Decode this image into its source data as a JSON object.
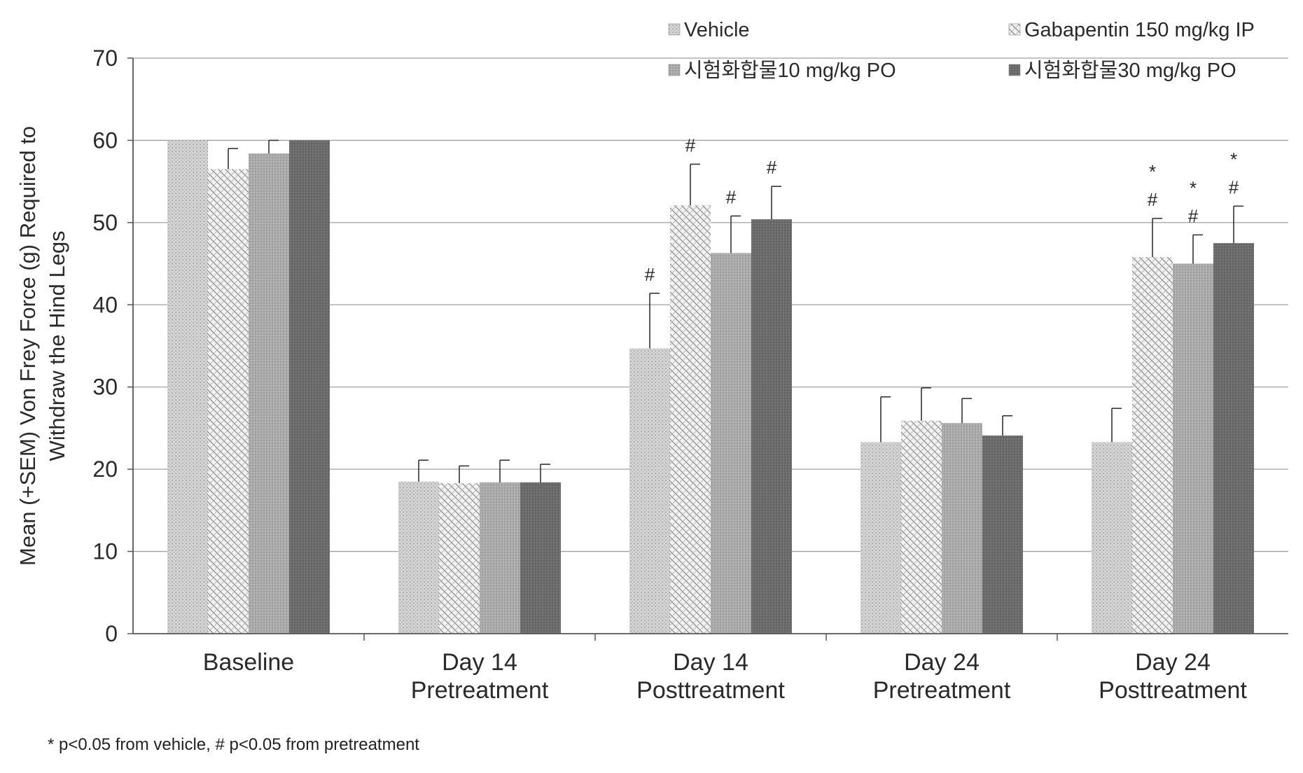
{
  "chart_data": {
    "type": "bar",
    "title": "",
    "xlabel": "",
    "ylabel_lines": [
      "Mean (+SEM) Von Frey  Force (g) Required to",
      "Withdraw the Hind Legs"
    ],
    "ylim": [
      0,
      70
    ],
    "yticks": [
      0,
      10,
      20,
      30,
      40,
      50,
      60,
      70
    ],
    "grid": true,
    "legend_position": "top",
    "categories": [
      [
        "Baseline"
      ],
      [
        "Day 14",
        "Pretreatment"
      ],
      [
        "Day 14",
        "Posttreatment"
      ],
      [
        "Day 24",
        "Pretreatment"
      ],
      [
        "Day 24",
        "Posttreatment"
      ]
    ],
    "series": [
      {
        "name": "Vehicle",
        "pattern": "dots",
        "color": "#d2d2d2",
        "values": [
          60,
          18.5,
          34.7,
          23.3,
          23.3
        ],
        "errors": [
          0,
          2.6,
          6.7,
          5.5,
          4.1
        ],
        "annotations": [
          [],
          [],
          [
            "#"
          ],
          [],
          []
        ]
      },
      {
        "name": "Gabapentin 150 mg/kg IP",
        "pattern": "crosshatch",
        "color": "#e8e8e8",
        "values": [
          56.5,
          18.3,
          52.1,
          25.9,
          45.8
        ],
        "errors": [
          2.5,
          2.1,
          5.0,
          4.0,
          4.7
        ],
        "annotations": [
          [],
          [],
          [
            "#"
          ],
          [],
          [
            "*",
            "#"
          ]
        ]
      },
      {
        "name": "시험화합물10 mg/kg PO",
        "pattern": "medium",
        "color": "#a9a9a9",
        "values": [
          58.4,
          18.4,
          46.3,
          25.6,
          45.0
        ],
        "errors": [
          1.6,
          2.7,
          4.5,
          3.0,
          3.5
        ],
        "annotations": [
          [],
          [],
          [
            "#"
          ],
          [],
          [
            "*",
            "#"
          ]
        ]
      },
      {
        "name": "시험화합물30 mg/kg PO",
        "pattern": "dark",
        "color": "#6f6f6f",
        "values": [
          60,
          18.4,
          50.4,
          24.1,
          47.5
        ],
        "errors": [
          0,
          2.2,
          4.0,
          2.4,
          4.5
        ],
        "annotations": [
          [],
          [],
          [
            "#"
          ],
          [],
          [
            "*",
            "#"
          ]
        ]
      }
    ]
  },
  "footnote": "* p<0.05 from vehicle, # p<0.05 from pretreatment"
}
